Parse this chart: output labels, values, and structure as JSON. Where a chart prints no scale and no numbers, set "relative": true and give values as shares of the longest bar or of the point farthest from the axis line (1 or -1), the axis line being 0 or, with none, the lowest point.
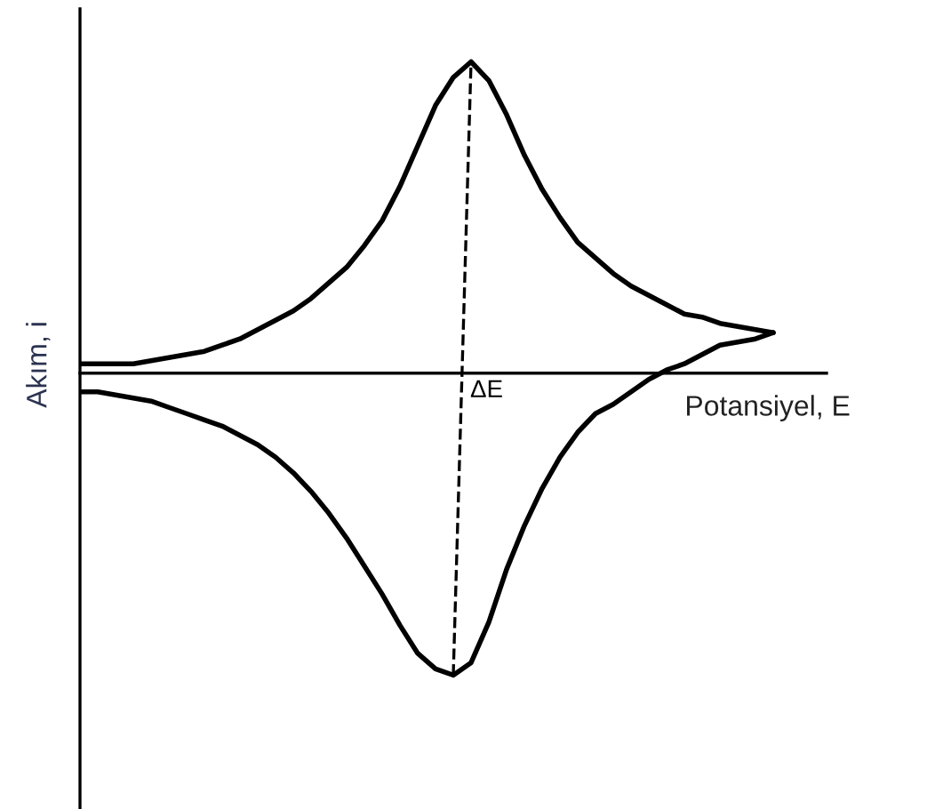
{
  "chart_data": {
    "type": "line",
    "relative": true,
    "xlabel": "Potansiyel, E",
    "ylabel": "Akım, i",
    "categories": [
      null,
      null,
      null,
      null,
      null,
      null,
      null,
      null,
      null,
      null,
      null,
      null,
      null,
      null,
      null,
      null,
      null,
      null,
      null,
      null,
      null,
      null,
      null,
      null,
      null,
      null,
      null,
      null,
      null,
      null,
      null,
      null,
      null,
      null,
      null,
      null,
      null,
      null,
      null,
      null,
      null,
      null,
      null
    ],
    "series": [
      {
        "color": "#000000",
        "values": [
          0.03,
          0.03,
          0.03,
          0.03,
          0.04,
          0.05,
          0.06,
          0.07,
          0.09,
          0.11,
          0.14,
          0.17,
          0.2,
          0.24,
          0.29,
          0.34,
          0.41,
          0.49,
          0.6,
          0.73,
          0.86,
          0.95,
          1,
          0.94,
          0.83,
          0.7,
          0.59,
          0.5,
          0.42,
          0.37,
          0.32,
          0.28,
          0.25,
          0.22,
          0.19,
          0.18,
          0.16,
          0.15,
          0.14,
          0.13,
          null,
          null,
          null
        ]
      },
      {
        "color": "#000000",
        "values": [
          -0.06,
          -0.06,
          -0.07,
          -0.08,
          -0.09,
          -0.11,
          -0.13,
          -0.15,
          -0.17,
          -0.2,
          -0.23,
          -0.27,
          -0.32,
          -0.38,
          -0.45,
          -0.53,
          -0.62,
          -0.71,
          -0.81,
          -0.9,
          -0.95,
          -0.97,
          -0.93,
          -0.8,
          -0.63,
          -0.49,
          -0.37,
          -0.27,
          -0.19,
          -0.13,
          -0.1,
          -0.06,
          -0.02,
          0.01,
          0.03,
          0.06,
          0.09,
          0.1,
          0.11,
          0.13,
          null,
          null,
          null
        ]
      },
      {
        "color": "#000000",
        "line_style": "dashed",
        "values": [
          null,
          null,
          null,
          null,
          null,
          null,
          null,
          null,
          null,
          null,
          null,
          null,
          null,
          null,
          null,
          null,
          null,
          null,
          null,
          null,
          null,
          -0.97,
          1,
          null,
          null,
          null,
          null,
          null,
          null,
          null,
          null,
          null,
          null,
          null,
          null,
          null,
          null,
          null,
          null,
          null,
          null,
          null,
          null
        ]
      }
    ],
    "annotations": [
      "ΔE"
    ],
    "legend": false
  }
}
